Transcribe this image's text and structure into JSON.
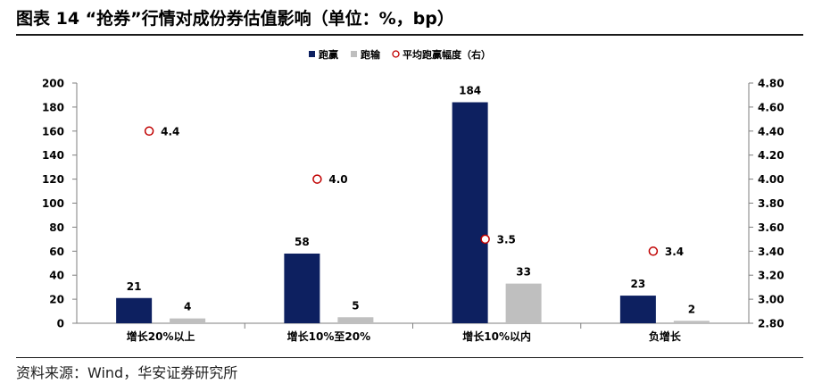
{
  "title": "图表 14 “抢券”行情对成份券估值影响（单位：%，bp）",
  "source": "资料来源：Wind，华安证券研究所",
  "chart_data": {
    "type": "bar",
    "categories": [
      "增长20%以上",
      "增长10%至20%",
      "增长10%以内",
      "负增长"
    ],
    "series": [
      {
        "name": "跑赢",
        "type": "bar",
        "axis": "left",
        "color": "#0d2060",
        "values": [
          21,
          58,
          184,
          23
        ]
      },
      {
        "name": "跑输",
        "type": "bar",
        "axis": "left",
        "color": "#bfbfbf",
        "values": [
          4,
          5,
          33,
          2
        ]
      },
      {
        "name": "平均跑赢幅度（右）",
        "type": "scatter",
        "axis": "right",
        "color": "#c00000",
        "values": [
          4.4,
          4.0,
          3.5,
          3.4
        ]
      }
    ],
    "ylim_left": [
      0,
      200
    ],
    "yticks_left": [
      0,
      20,
      40,
      60,
      80,
      100,
      120,
      140,
      160,
      180,
      200
    ],
    "ylim_right": [
      2.8,
      4.8
    ],
    "yticks_right": [
      "2.80",
      "3.00",
      "3.20",
      "3.40",
      "3.60",
      "3.80",
      "4.00",
      "4.20",
      "4.40",
      "4.60",
      "4.80"
    ],
    "legend_position": "top-center",
    "grid": false
  }
}
